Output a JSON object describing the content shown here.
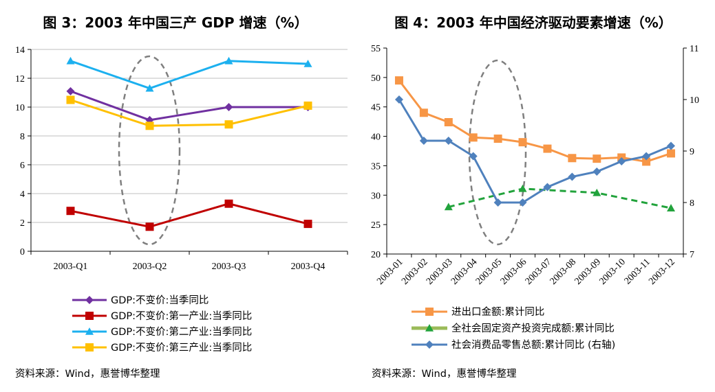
{
  "chart_data": [
    {
      "type": "line",
      "title": "图 3：2003 年中国三产 GDP 增速（%）",
      "categories": [
        "2003-Q1",
        "2003-Q2",
        "2003-Q3",
        "2003-Q4"
      ],
      "ylim": [
        0,
        14
      ],
      "yticks": [
        0,
        2,
        4,
        6,
        8,
        10,
        12,
        14
      ],
      "grid": true,
      "series": [
        {
          "name": "GDP:不变价:当季同比",
          "color": "#7030A0",
          "marker": "diamond",
          "values": [
            11.1,
            9.1,
            10.0,
            10.0
          ]
        },
        {
          "name": "GDP:不变价:第一产业:当季同比",
          "color": "#C00000",
          "marker": "square",
          "values": [
            2.8,
            1.7,
            3.3,
            1.9
          ]
        },
        {
          "name": "GDP:不变价:第二产业:当季同比",
          "color": "#1CB0EF",
          "marker": "triangle",
          "values": [
            13.2,
            11.3,
            13.2,
            13.0
          ]
        },
        {
          "name": "GDP:不变价:第三产业:当季同比",
          "color": "#FFC000",
          "marker": "square",
          "values": [
            10.5,
            8.7,
            8.8,
            10.1
          ]
        }
      ],
      "source": "资料来源：Wind，惠誉博华整理"
    },
    {
      "type": "line",
      "title": "图 4：2003 年中国经济驱动要素增速（%）",
      "categories": [
        "2003-01",
        "2003-02",
        "2003-03",
        "2003-04",
        "2003-05",
        "2003-06",
        "2003-07",
        "2003-08",
        "2003-09",
        "2003-10",
        "2003-11",
        "2003-12"
      ],
      "ylim": [
        20,
        55
      ],
      "yticks": [
        20,
        25,
        30,
        35,
        40,
        45,
        50,
        55
      ],
      "y2lim": [
        7,
        11
      ],
      "y2ticks": [
        7,
        8,
        9,
        10,
        11
      ],
      "grid": false,
      "series": [
        {
          "name": "进出口金额:累计同比",
          "color": "#F79646",
          "marker": "square",
          "axis": "left",
          "values": [
            49.5,
            44.0,
            42.4,
            39.8,
            39.6,
            39.0,
            37.9,
            36.3,
            36.2,
            36.4,
            35.7,
            37.1
          ]
        },
        {
          "name": "全社会固定资产投资完成额:累计同比",
          "color": "#22A33C",
          "marker": "triangle",
          "dashed": true,
          "axis": "left",
          "values": [
            null,
            null,
            28.0,
            null,
            null,
            31.1,
            null,
            null,
            30.4,
            null,
            null,
            27.8
          ]
        },
        {
          "name": "社会消费品零售总额:累计同比 (右轴)",
          "color": "#4F81BD",
          "marker": "diamond",
          "axis": "right",
          "values": [
            10.0,
            9.2,
            9.2,
            8.9,
            8.0,
            8.0,
            8.3,
            8.5,
            8.6,
            8.8,
            8.9,
            9.1
          ]
        }
      ],
      "source": "资料来源：Wind，惠誉博华整理"
    }
  ]
}
